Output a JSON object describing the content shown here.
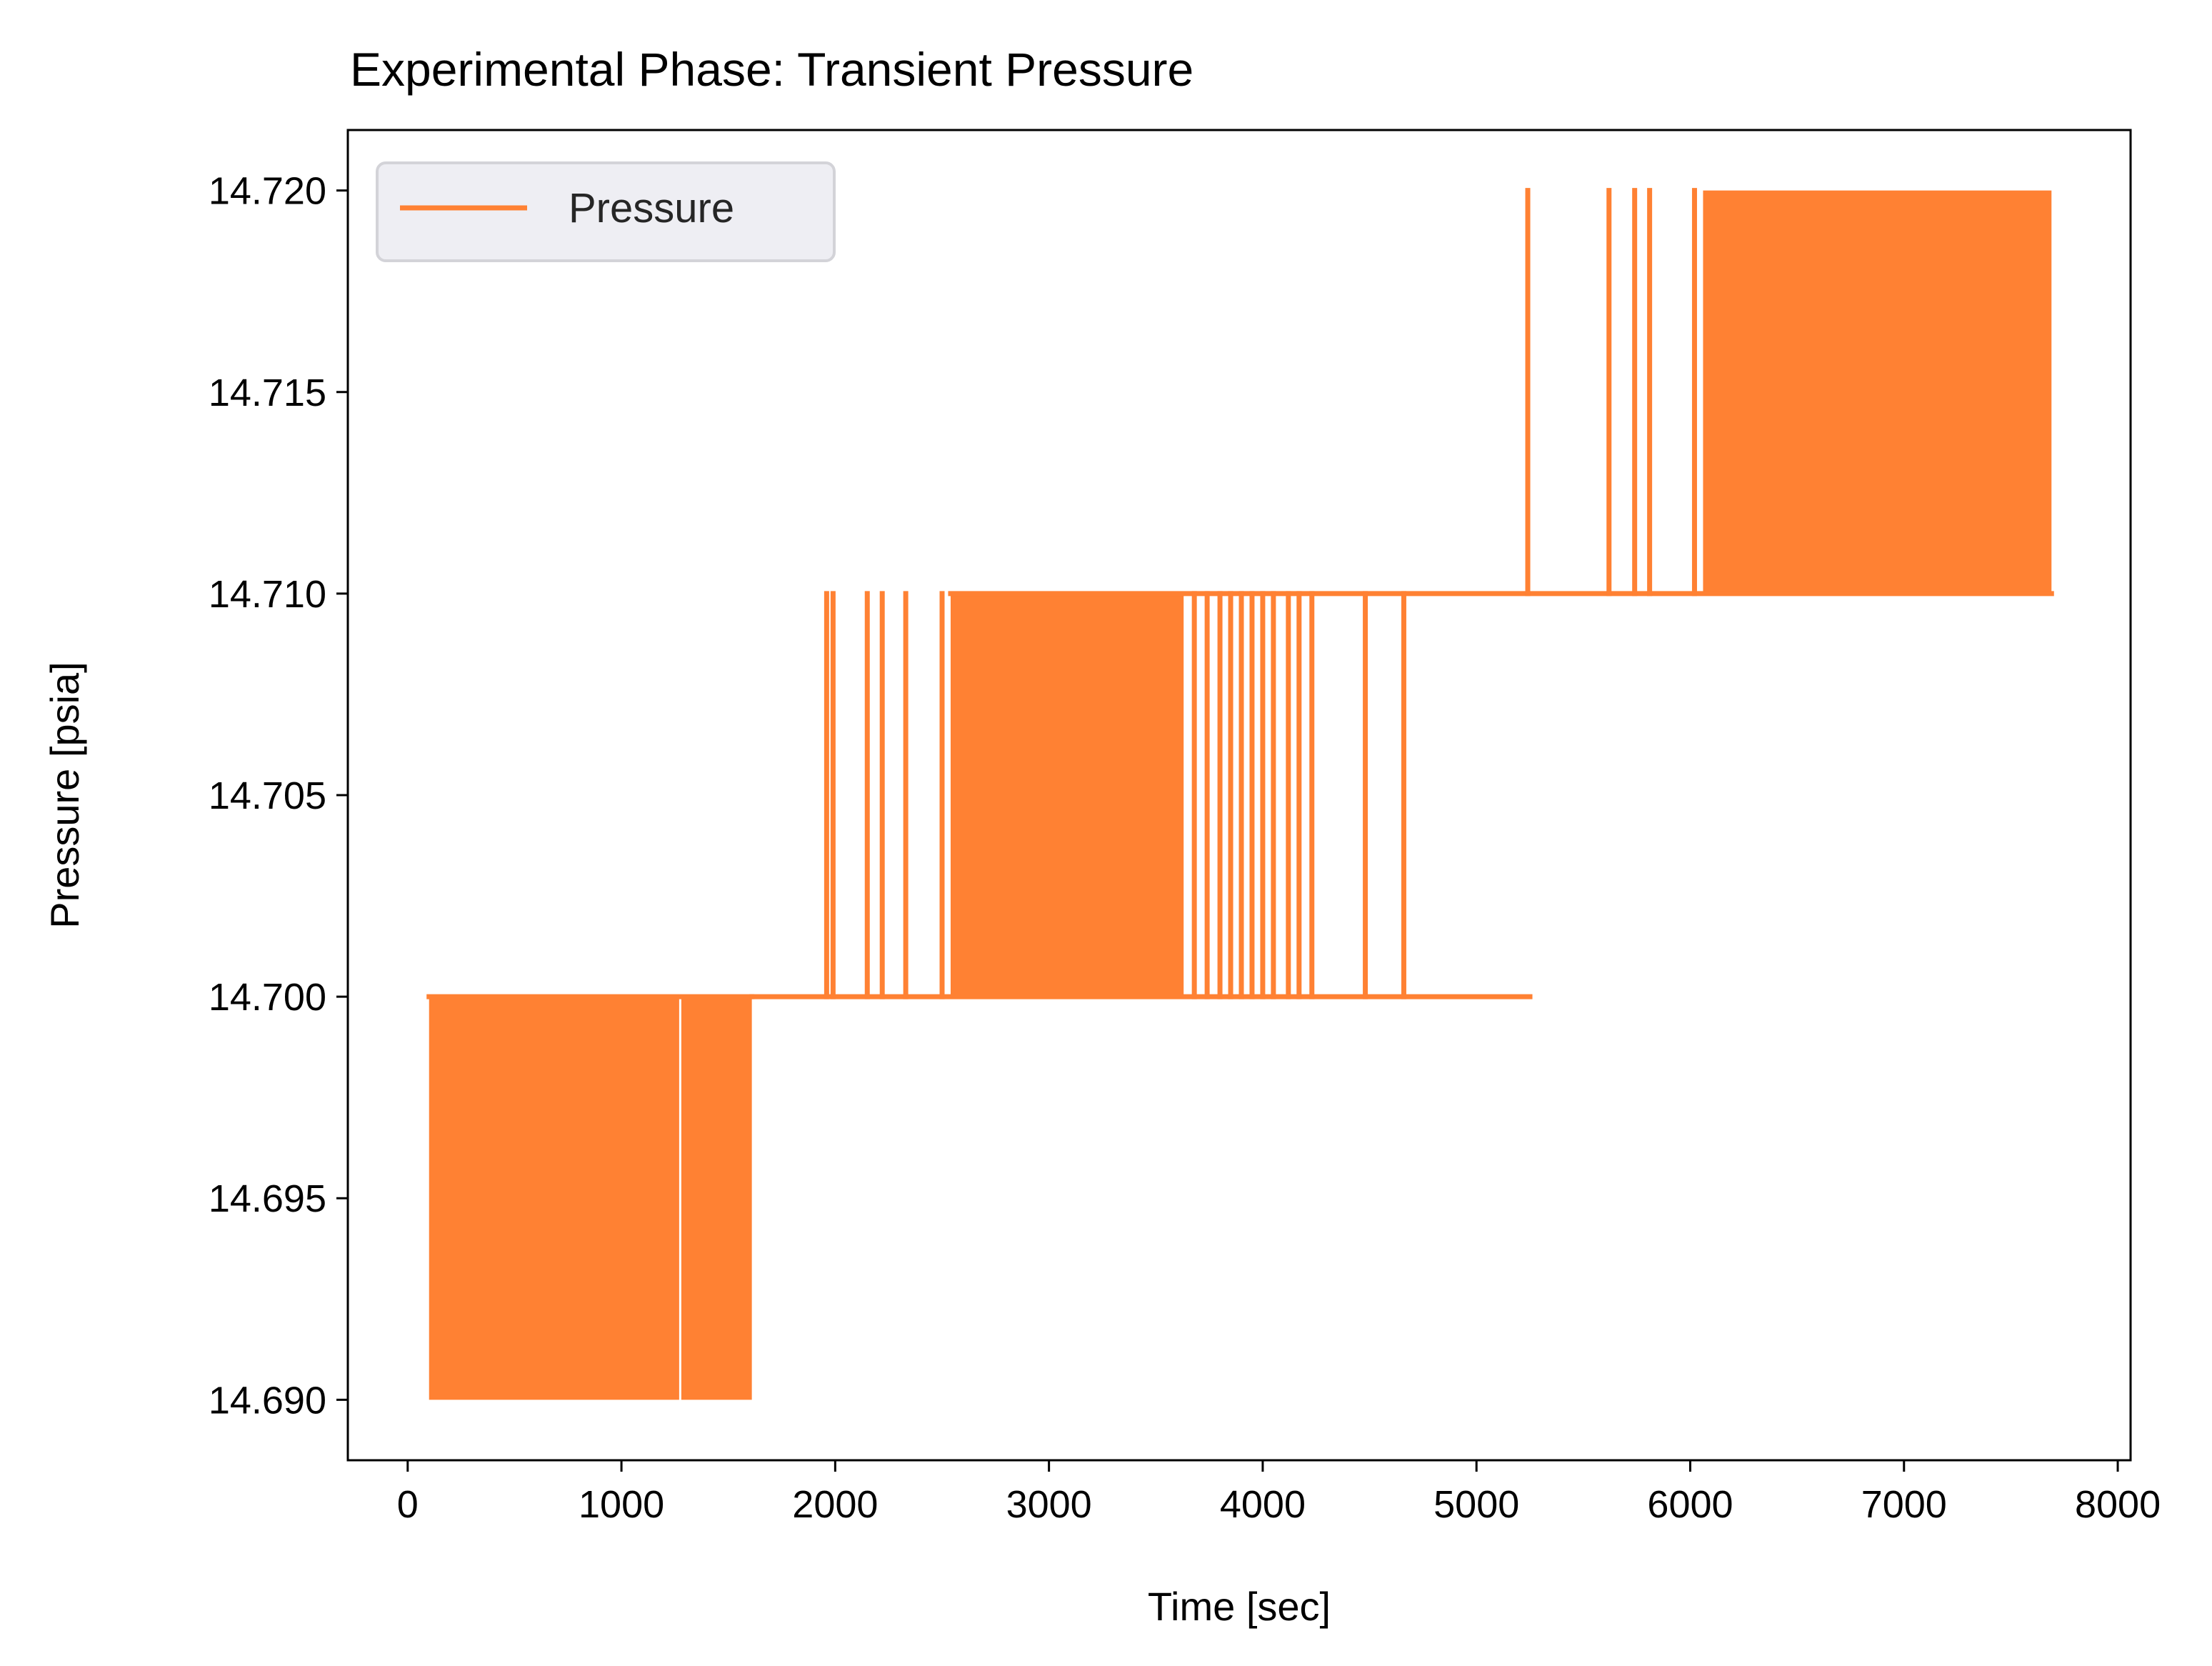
{
  "chart_data": {
    "type": "line",
    "title": "Experimental Phase: Transient Pressure",
    "xlabel": "Time [sec]",
    "ylabel": "Pressure [psia]",
    "xlim": [
      -280,
      8060
    ],
    "ylim": [
      14.6885,
      14.7215
    ],
    "x_ticks": [
      0,
      1000,
      2000,
      3000,
      4000,
      5000,
      6000,
      7000,
      8000
    ],
    "x_tick_labels": [
      "0",
      "1000",
      "2000",
      "3000",
      "4000",
      "5000",
      "6000",
      "7000",
      "8000"
    ],
    "y_ticks": [
      14.69,
      14.695,
      14.7,
      14.705,
      14.71,
      14.715,
      14.72
    ],
    "y_tick_labels": [
      "14.690",
      "14.695",
      "14.700",
      "14.705",
      "14.710",
      "14.715",
      "14.720"
    ],
    "grid": false,
    "legend": {
      "placement": "top-left",
      "entries": [
        "Pressure"
      ]
    },
    "series": [
      {
        "name": "Pressure",
        "color": "#FF8133",
        "baseline_segments": [
          {
            "x_start": 100,
            "x_end": 1610,
            "y": 14.7
          },
          {
            "x_start": 1610,
            "x_end": 5250,
            "y": 14.7
          },
          {
            "x_start": 2540,
            "x_end": 7690,
            "y": 14.71
          }
        ],
        "dense_bands": [
          {
            "x_start": 100,
            "x_end": 1270,
            "y_low": 14.69,
            "y_high": 14.7
          },
          {
            "x_start": 1280,
            "x_end": 1610,
            "y_low": 14.69,
            "y_high": 14.7
          },
          {
            "x_start": 2540,
            "x_end": 3630,
            "y_low": 14.7,
            "y_high": 14.71
          },
          {
            "x_start": 6060,
            "x_end": 7690,
            "y_low": 14.71,
            "y_high": 14.72
          }
        ],
        "spikes": [
          {
            "x": 1960,
            "y_low": 14.7,
            "y_high": 14.71
          },
          {
            "x": 1990,
            "y_low": 14.7,
            "y_high": 14.71
          },
          {
            "x": 2150,
            "y_low": 14.7,
            "y_high": 14.71
          },
          {
            "x": 2220,
            "y_low": 14.7,
            "y_high": 14.71
          },
          {
            "x": 2330,
            "y_low": 14.7,
            "y_high": 14.71
          },
          {
            "x": 2500,
            "y_low": 14.7,
            "y_high": 14.71
          },
          {
            "x": 3680,
            "y_low": 14.7,
            "y_high": 14.71
          },
          {
            "x": 3740,
            "y_low": 14.7,
            "y_high": 14.71
          },
          {
            "x": 3800,
            "y_low": 14.7,
            "y_high": 14.71
          },
          {
            "x": 3850,
            "y_low": 14.7,
            "y_high": 14.71
          },
          {
            "x": 3900,
            "y_low": 14.7,
            "y_high": 14.71
          },
          {
            "x": 3950,
            "y_low": 14.7,
            "y_high": 14.71
          },
          {
            "x": 4000,
            "y_low": 14.7,
            "y_high": 14.71
          },
          {
            "x": 4050,
            "y_low": 14.7,
            "y_high": 14.71
          },
          {
            "x": 4120,
            "y_low": 14.7,
            "y_high": 14.71
          },
          {
            "x": 4170,
            "y_low": 14.7,
            "y_high": 14.71
          },
          {
            "x": 4230,
            "y_low": 14.7,
            "y_high": 14.71
          },
          {
            "x": 4480,
            "y_low": 14.7,
            "y_high": 14.71
          },
          {
            "x": 4660,
            "y_low": 14.7,
            "y_high": 14.71
          },
          {
            "x": 5240,
            "y_low": 14.71,
            "y_high": 14.72
          },
          {
            "x": 5620,
            "y_low": 14.71,
            "y_high": 14.72
          },
          {
            "x": 5740,
            "y_low": 14.71,
            "y_high": 14.72
          },
          {
            "x": 5810,
            "y_low": 14.71,
            "y_high": 14.72
          },
          {
            "x": 6020,
            "y_low": 14.71,
            "y_high": 14.72
          }
        ]
      }
    ]
  }
}
